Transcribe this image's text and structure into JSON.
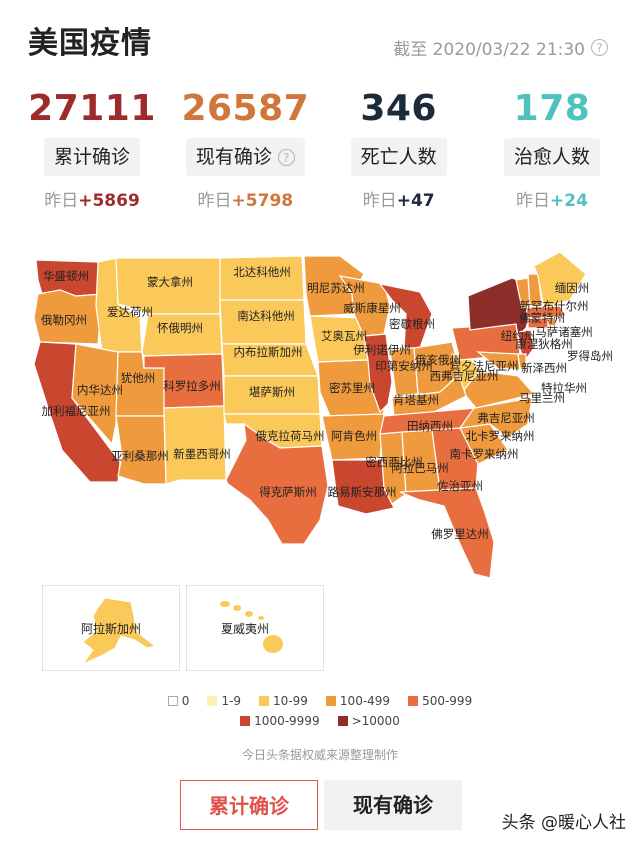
{
  "header": {
    "title": "美国疫情",
    "timestamp": "截至 2020/03/22 21:30",
    "help_icon": "question-icon"
  },
  "stats": [
    {
      "value": "27111",
      "label": "累计确诊",
      "delta_prefix": "昨日",
      "delta": "+5869",
      "color": "#9e2b2b",
      "has_help": false
    },
    {
      "value": "26587",
      "label": "现有确诊",
      "delta_prefix": "昨日",
      "delta": "+5798",
      "color": "#d0763a",
      "has_help": true
    },
    {
      "value": "346",
      "label": "死亡人数",
      "delta_prefix": "昨日",
      "delta": "+47",
      "color": "#1c2b3a",
      "has_help": false
    },
    {
      "value": "178",
      "label": "治愈人数",
      "delta_prefix": "昨日",
      "delta": "+24",
      "color": "#4fc2c0",
      "has_help": false
    }
  ],
  "colors": {
    "c0": "#ffffff",
    "c1": "#fdf0b0",
    "c2": "#fbc95a",
    "c3": "#ef9a3c",
    "c4": "#e86e3f",
    "c5": "#c9472e",
    "c6": "#8e2e2a"
  },
  "map": {
    "states": [
      {
        "name": "华盛顿州",
        "level": "c5"
      },
      {
        "name": "俄勒冈州",
        "level": "c3"
      },
      {
        "name": "加利福尼亚州",
        "level": "c5"
      },
      {
        "name": "爱达荷州",
        "level": "c2"
      },
      {
        "name": "内华达州",
        "level": "c3"
      },
      {
        "name": "犹他州",
        "level": "c3"
      },
      {
        "name": "亚利桑那州",
        "level": "c3"
      },
      {
        "name": "蒙大拿州",
        "level": "c2"
      },
      {
        "name": "怀俄明州",
        "level": "c2"
      },
      {
        "name": "科罗拉多州",
        "level": "c4"
      },
      {
        "name": "新墨西哥州",
        "level": "c2"
      },
      {
        "name": "北达科他州",
        "level": "c2"
      },
      {
        "name": "南达科他州",
        "level": "c2"
      },
      {
        "name": "内布拉斯加州",
        "level": "c2"
      },
      {
        "name": "堪萨斯州",
        "level": "c2"
      },
      {
        "name": "俄克拉荷马州",
        "level": "c2"
      },
      {
        "name": "得克萨斯州",
        "level": "c4"
      },
      {
        "name": "明尼苏达州",
        "level": "c3"
      },
      {
        "name": "艾奥瓦州",
        "level": "c2"
      },
      {
        "name": "密苏里州",
        "level": "c3"
      },
      {
        "name": "阿肯色州",
        "level": "c3"
      },
      {
        "name": "路易斯安那州",
        "level": "c5"
      },
      {
        "name": "威斯康星州",
        "level": "c3"
      },
      {
        "name": "伊利诺伊州",
        "level": "c5"
      },
      {
        "name": "密歇根州",
        "level": "c5"
      },
      {
        "name": "印第安纳州",
        "level": "c3"
      },
      {
        "name": "俄亥俄州",
        "level": "c3"
      },
      {
        "name": "肯塔基州",
        "level": "c3"
      },
      {
        "name": "田纳西州",
        "level": "c4"
      },
      {
        "name": "密西西比州",
        "level": "c3"
      },
      {
        "name": "阿拉巴马州",
        "level": "c3"
      },
      {
        "name": "佐治亚州",
        "level": "c4"
      },
      {
        "name": "佛罗里达州",
        "level": "c4"
      },
      {
        "name": "南卡罗来纳州",
        "level": "c3"
      },
      {
        "name": "北卡罗来纳州",
        "level": "c3"
      },
      {
        "name": "弗吉尼亚州",
        "level": "c3"
      },
      {
        "name": "西弗吉尼亚州",
        "level": "c2"
      },
      {
        "name": "宾夕法尼亚州",
        "level": "c4"
      },
      {
        "name": "纽约州",
        "level": "c6"
      },
      {
        "name": "佛蒙特州",
        "level": "c3"
      },
      {
        "name": "新罕布什尔州",
        "level": "c3"
      },
      {
        "name": "缅因州",
        "level": "c2"
      },
      {
        "name": "马萨诸塞州",
        "level": "c4"
      },
      {
        "name": "罗得岛州",
        "level": "c3"
      },
      {
        "name": "康涅狄格州",
        "level": "c4"
      },
      {
        "name": "新泽西州",
        "level": "c5"
      },
      {
        "name": "特拉华州",
        "level": "c3"
      },
      {
        "name": "马里兰州",
        "level": "c3"
      },
      {
        "name": "阿拉斯加州",
        "level": "c2"
      },
      {
        "name": "夏威夷州",
        "level": "c2"
      }
    ]
  },
  "legend": {
    "row1": [
      {
        "label": "0",
        "level": "c0"
      },
      {
        "label": "1-9",
        "level": "c1"
      },
      {
        "label": "10-99",
        "level": "c2"
      },
      {
        "label": "100-499",
        "level": "c3"
      },
      {
        "label": "500-999",
        "level": "c4"
      }
    ],
    "row2": [
      {
        "label": "1000-9999",
        "level": "c5"
      },
      {
        "label": ">10000",
        "level": "c6"
      }
    ]
  },
  "source": "今日头条据权威来源整理制作",
  "tabs": {
    "active": "累计确诊",
    "inactive": "现有确诊"
  },
  "watermark": "头条 @暖心人社"
}
